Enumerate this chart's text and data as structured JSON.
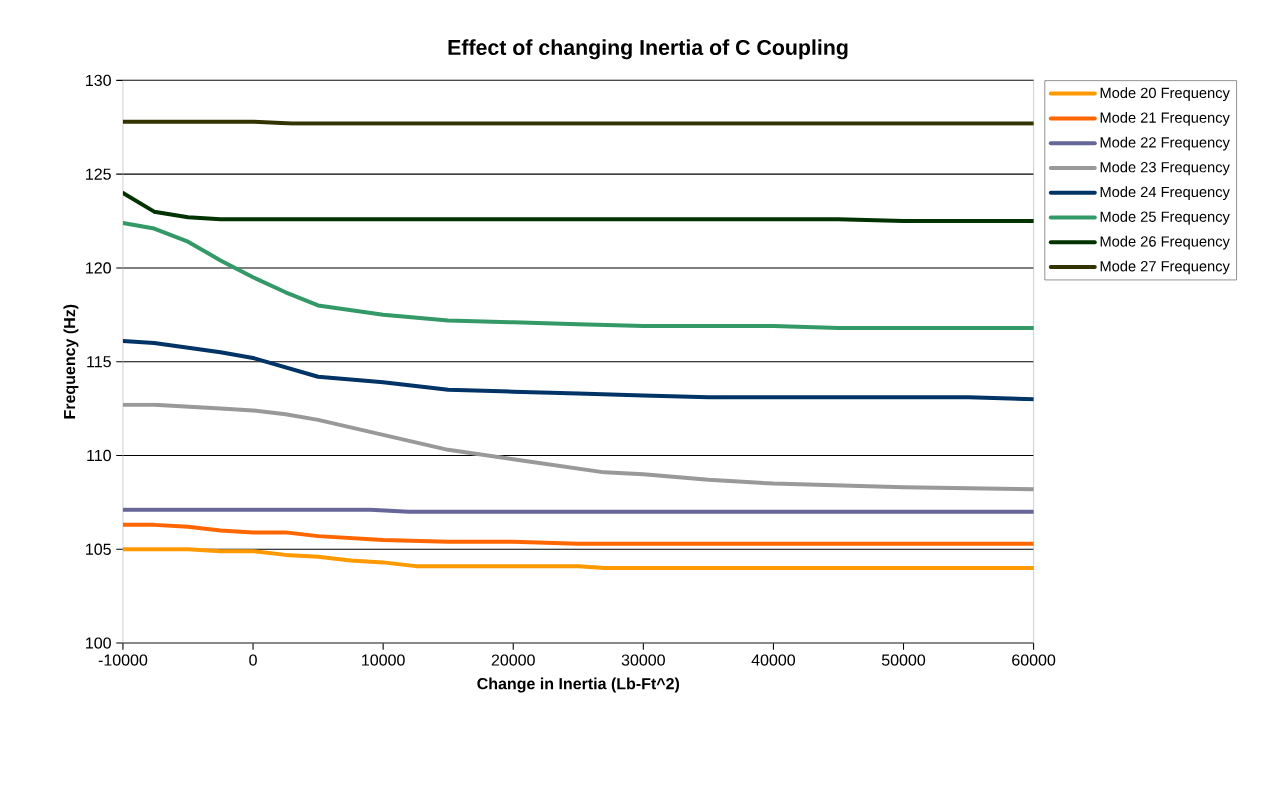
{
  "chart_data": {
    "type": "line",
    "title": "Effect of changing Inertia of C Coupling",
    "xlabel": "Change in Inertia (Lb-Ft^2)",
    "ylabel": "Frequency (Hz)",
    "xlim": [
      -10000,
      60000
    ],
    "ylim": [
      100,
      130
    ],
    "xticks": [
      -10000,
      0,
      10000,
      20000,
      30000,
      40000,
      50000,
      60000
    ],
    "yticks": [
      100,
      105,
      110,
      115,
      120,
      125,
      130
    ],
    "grid": "y",
    "legend": "top right",
    "marker": "none",
    "line_style": "solid",
    "series": [
      {
        "name": "Mode 20 Frequency",
        "color": "#ff9900",
        "x": [
          -10000,
          -7600,
          -5000,
          -2500,
          0,
          2500,
          5000,
          7500,
          10000,
          12500,
          15000,
          20000,
          25000,
          27000,
          60000
        ],
        "values": [
          105.0,
          105.0,
          105.0,
          104.9,
          104.9,
          104.7,
          104.6,
          104.4,
          104.3,
          104.1,
          104.1,
          104.1,
          104.1,
          104.0,
          104.0
        ]
      },
      {
        "name": "Mode 21 Frequency",
        "color": "#ff6600",
        "x": [
          -10000,
          -7600,
          -5000,
          -2500,
          0,
          2500,
          5000,
          10000,
          15000,
          20000,
          25000,
          60000
        ],
        "values": [
          106.3,
          106.3,
          106.2,
          106.0,
          105.9,
          105.9,
          105.7,
          105.5,
          105.4,
          105.4,
          105.3,
          105.3
        ]
      },
      {
        "name": "Mode 22 Frequency",
        "color": "#666699",
        "x": [
          -10000,
          9000,
          12000,
          60000
        ],
        "values": [
          107.1,
          107.1,
          107.0,
          107.0
        ]
      },
      {
        "name": "Mode 23 Frequency",
        "color": "#999999",
        "x": [
          -10000,
          -7600,
          -2500,
          0,
          2500,
          5000,
          7500,
          10000,
          12500,
          15000,
          20000,
          27000,
          30000,
          35000,
          40000,
          50000,
          60000
        ],
        "values": [
          112.7,
          112.7,
          112.5,
          112.4,
          112.2,
          111.9,
          111.5,
          111.1,
          110.7,
          110.3,
          109.8,
          109.1,
          109.0,
          108.7,
          108.5,
          108.3,
          108.2
        ]
      },
      {
        "name": "Mode 24 Frequency",
        "color": "#003366",
        "x": [
          -10000,
          -7600,
          -2500,
          0,
          2500,
          5000,
          10000,
          15000,
          20000,
          25000,
          30000,
          35000,
          55000,
          60000
        ],
        "values": [
          116.1,
          116.0,
          115.5,
          115.2,
          114.7,
          114.2,
          113.9,
          113.5,
          113.4,
          113.3,
          113.2,
          113.1,
          113.1,
          113.0
        ]
      },
      {
        "name": "Mode 25 Frequency",
        "color": "#339966",
        "x": [
          -10000,
          -7600,
          -5000,
          -2500,
          0,
          2500,
          5000,
          10000,
          15000,
          20000,
          25000,
          30000,
          40000,
          45000,
          60000
        ],
        "values": [
          122.4,
          122.1,
          121.4,
          120.4,
          119.5,
          118.7,
          118.0,
          117.5,
          117.2,
          117.1,
          117.0,
          116.9,
          116.9,
          116.8,
          116.8
        ]
      },
      {
        "name": "Mode 26 Frequency",
        "color": "#003300",
        "x": [
          -10000,
          -7600,
          -5000,
          -2500,
          45000,
          50000,
          60000
        ],
        "values": [
          124.0,
          123.0,
          122.7,
          122.6,
          122.6,
          122.5,
          122.5
        ]
      },
      {
        "name": "Mode 27 Frequency",
        "color": "#333300",
        "x": [
          -10000,
          0,
          3000,
          60000
        ],
        "values": [
          127.8,
          127.8,
          127.7,
          127.7
        ]
      }
    ]
  }
}
